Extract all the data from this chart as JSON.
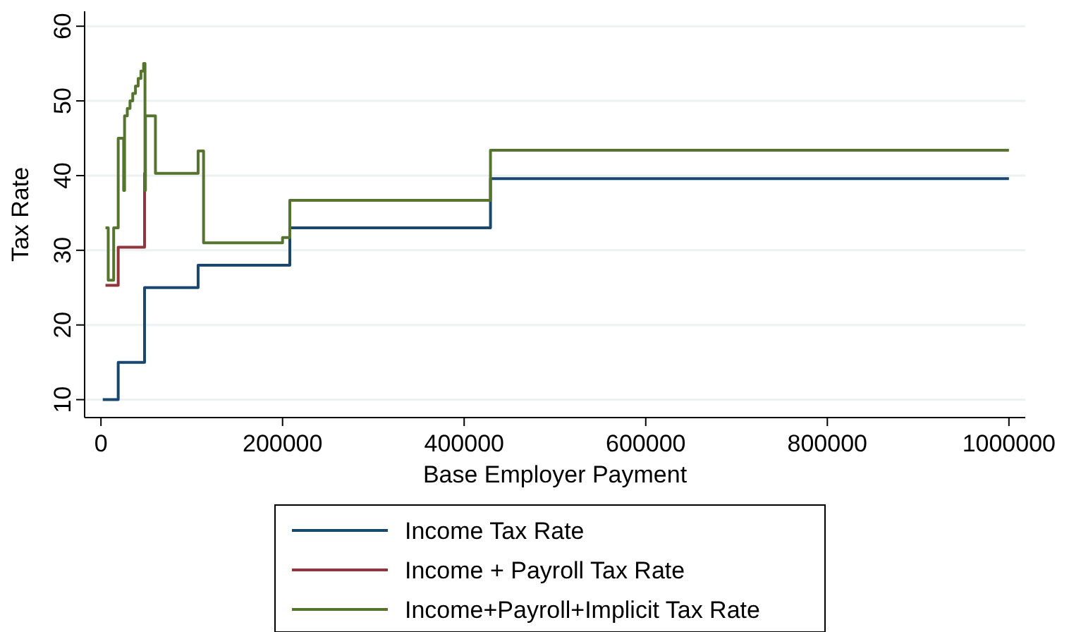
{
  "chart_data": {
    "type": "step",
    "xlabel": "Base Employer Payment",
    "ylabel": "Tax Rate",
    "xlim": [
      -18000,
      1018000
    ],
    "ylim": [
      7.6,
      62
    ],
    "xticks": [
      0,
      200000,
      400000,
      600000,
      800000,
      1000000
    ],
    "yticks": [
      10,
      20,
      30,
      40,
      50,
      60
    ],
    "grid": "y",
    "legend": "bottom",
    "series": [
      {
        "name": "Income Tax Rate",
        "color": "#1a476f",
        "x": [
          2000,
          19000,
          48000,
          107000,
          208000,
          429000,
          1000000
        ],
        "values": [
          10,
          15,
          25,
          28,
          33,
          39.6,
          39.6
        ]
      },
      {
        "name": "Income + Payroll Tax Rate",
        "color": "#90353b",
        "x": [
          5000,
          19000,
          48000,
          49000
        ],
        "values": [
          25.3,
          30.4,
          40.3,
          40.3
        ]
      },
      {
        "name": "Income+Payroll+Implicit Tax Rate",
        "color": "#55752f",
        "x": [
          5000,
          8000,
          14000,
          19000,
          25000,
          26000,
          29000,
          32000,
          35000,
          38000,
          41000,
          44000,
          47000,
          48500,
          49000,
          60000,
          107000,
          113000,
          200000,
          208000,
          429000,
          1000000
        ],
        "values": [
          33,
          26,
          33,
          45,
          38,
          48,
          49,
          50,
          51,
          52,
          53,
          54,
          55,
          38,
          48,
          40.3,
          43.3,
          31,
          31.7,
          36.7,
          43.4,
          43.4
        ]
      }
    ]
  }
}
